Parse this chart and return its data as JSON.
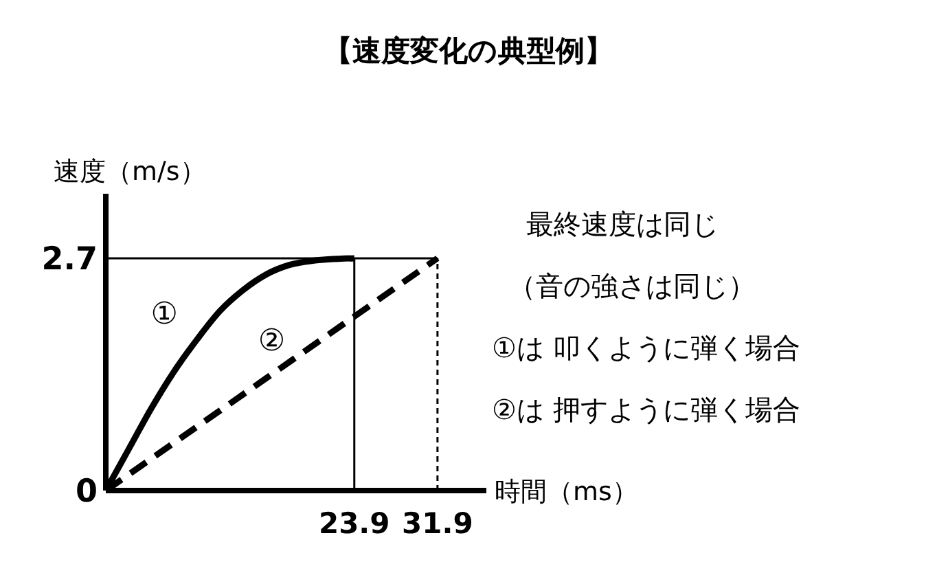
{
  "chart_data": {
    "type": "line",
    "title": "【速度変化の典型例】",
    "xlabel": "時間（ms）",
    "ylabel": "速度（m/s）",
    "xlim": [
      0,
      36.6
    ],
    "ylim": [
      0,
      3.45
    ],
    "xticks": [
      23.9,
      31.9
    ],
    "yticks": [
      0,
      2.7
    ],
    "grid": false,
    "legend": false,
    "marker": "none",
    "series": [
      {
        "name": "①",
        "color": "#000000",
        "line_style": "solid",
        "x": [
          0,
          2.2,
          4.4,
          6.6,
          8.8,
          11.0,
          13.2,
          15.4,
          17.6,
          19.8,
          23.9
        ],
        "values": [
          0,
          0.48,
          0.96,
          1.39,
          1.76,
          2.09,
          2.33,
          2.51,
          2.62,
          2.67,
          2.7
        ]
      },
      {
        "name": "②",
        "color": "#000000",
        "line_style": "dashed",
        "x": [
          0,
          31.9
        ],
        "values": [
          0,
          2.7
        ]
      }
    ],
    "ref_lines": [
      {
        "axis": "y",
        "value": 2.7,
        "color": "#000000",
        "line_style": "solid"
      },
      {
        "axis": "x",
        "value": 23.9,
        "color": "#000000",
        "line_style": "solid"
      },
      {
        "axis": "x",
        "value": 31.9,
        "color": "#000000",
        "line_style": "dashed"
      }
    ],
    "annotations": [
      "最終速度は同じ",
      "（音の強さは同じ）",
      "①は 叩くように弾く場合",
      "②は 押すように弾く場合"
    ]
  }
}
